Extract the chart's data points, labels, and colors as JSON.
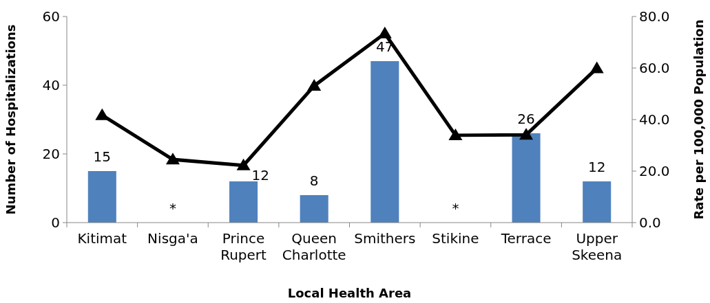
{
  "chart_data": {
    "type": "bar",
    "xlabel": "Local Health Area",
    "ylabel": "Number of Hospitalizations",
    "y2label": "Rate per 100,000 Population",
    "categories": [
      "Kitimat",
      "Nisga'a",
      "Prince Rupert",
      "Queen Charlotte",
      "Smithers",
      "Stikine",
      "Terrace",
      "Upper Skeena"
    ],
    "series": [
      {
        "color": "#4f81bd",
        "values": [
          15,
          null,
          12,
          8,
          47,
          null,
          26,
          12
        ],
        "value_labels": [
          "15",
          "*",
          "12",
          "8",
          "47",
          "*",
          "26",
          "12"
        ]
      },
      {
        "type": "line",
        "axis": "y2",
        "color": "#000000",
        "marker": "triangle",
        "values": [
          41.7,
          24.5,
          22.2,
          53.1,
          73.4,
          33.9,
          34.1,
          59.9
        ]
      }
    ],
    "ylim": [
      0,
      60
    ],
    "yticks": [
      0,
      20,
      40,
      60
    ],
    "y2lim": [
      0,
      80
    ],
    "y2ticks": [
      {
        "value": 0,
        "label": "0.0"
      },
      {
        "value": 20,
        "label": "20.0"
      },
      {
        "value": 40,
        "label": "40.0"
      },
      {
        "value": 60,
        "label": "60.0"
      },
      {
        "value": 80,
        "label": "80.0"
      }
    ],
    "grid": false
  }
}
